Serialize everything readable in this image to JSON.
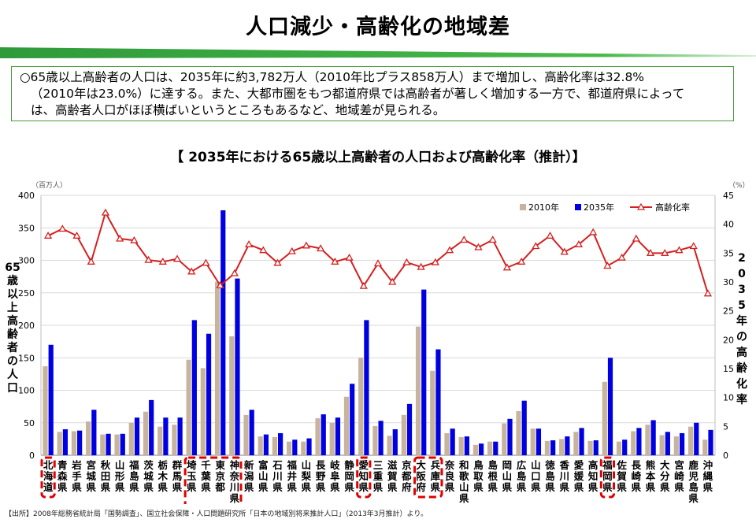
{
  "title": "人口減少・高齢化の地域差",
  "summary": {
    "line1": "○65歳以上高齢者の人口は、2035年に約3,782万人（2010年比プラス858万人）まで増加し、高齢化率は32.8%",
    "line2": "（2010年は23.0%）に達する。また、大都市圏をもつ都道府県では高齢者が著しく増加する一方で、都道府県によって",
    "line3": "は、高齢者人口がほぼ横ばいというところもあるなど、地域差が見られる。"
  },
  "source": "【出所】2008年総務省統計局「国勢調査」、国立社会保障・人口問題研究所「日本の地域別将来推計人口」（2013年3月推計）より。",
  "colors": {
    "accent_green": "#2e9a3a",
    "bar_2010": "#c8b49c",
    "bar_2035": "#0000e0",
    "line_rate": "#d42020",
    "highlight": "#e00000"
  },
  "chart_data": {
    "type": "bar",
    "title": "【 2035年における65歳以上高齢者の人口および高齢化率（推計）】",
    "y_unit_left": "（百万人）",
    "y_unit_right": "（%）",
    "ylabel_left": "65歳以上高齢者の人口",
    "ylabel_right": "2035年の高齢化率",
    "ylim_left": [
      0,
      400
    ],
    "yticks_left": [
      0,
      50,
      100,
      150,
      200,
      250,
      300,
      350,
      400
    ],
    "ylim_right": [
      0,
      45
    ],
    "yticks_right": [
      0,
      5,
      10,
      15,
      20,
      25,
      30,
      35,
      40,
      45
    ],
    "legend_position": "top-right",
    "categories": [
      "北海道",
      "青森県",
      "岩手県",
      "宮城県",
      "秋田県",
      "山形県",
      "福島県",
      "茨城県",
      "栃木県",
      "群馬県",
      "埼玉県",
      "千葉県",
      "東京都",
      "神奈川県",
      "新潟県",
      "富山県",
      "石川県",
      "福井県",
      "山梨県",
      "長野県",
      "岐阜県",
      "静岡県",
      "愛知県",
      "三重県",
      "滋賀県",
      "京都府",
      "大阪府",
      "兵庫県",
      "奈良県",
      "和歌山県",
      "鳥取県",
      "島根県",
      "岡山県",
      "広島県",
      "山口県",
      "徳島県",
      "香川県",
      "愛媛県",
      "高知県",
      "福岡県",
      "佐賀県",
      "長崎県",
      "熊本県",
      "大分県",
      "宮崎県",
      "鹿児島県",
      "沖縄県"
    ],
    "highlighted_groups": [
      [
        "北海道"
      ],
      [
        "埼玉県",
        "千葉県",
        "東京都",
        "神奈川県"
      ],
      [
        "愛知県"
      ],
      [
        "大阪府",
        "兵庫県"
      ],
      [
        "福岡県"
      ]
    ],
    "series": [
      {
        "name": "2010年",
        "type": "bar",
        "axis": "left",
        "values": [
          137,
          36,
          37,
          52,
          32,
          32,
          50,
          67,
          44,
          47,
          147,
          134,
          267,
          183,
          62,
          29,
          28,
          21,
          21,
          57,
          50,
          90,
          150,
          45,
          30,
          62,
          198,
          130,
          34,
          28,
          16,
          21,
          49,
          68,
          41,
          22,
          25,
          36,
          22,
          113,
          21,
          37,
          47,
          31,
          29,
          44,
          24
        ]
      },
      {
        "name": "2035年",
        "type": "bar",
        "axis": "left",
        "values": [
          170,
          40,
          38,
          70,
          33,
          33,
          58,
          85,
          58,
          58,
          208,
          187,
          377,
          272,
          70,
          32,
          34,
          24,
          26,
          63,
          58,
          110,
          208,
          53,
          40,
          79,
          255,
          163,
          41,
          29,
          18,
          21,
          56,
          84,
          41,
          23,
          29,
          42,
          23,
          150,
          24,
          42,
          54,
          36,
          34,
          50,
          39
        ]
      },
      {
        "name": "高齢化率",
        "type": "line",
        "axis": "right",
        "values": [
          38,
          39.2,
          38,
          33.5,
          42,
          37.5,
          37.2,
          33.8,
          33.5,
          34,
          31.8,
          33.3,
          29.4,
          31.5,
          36.5,
          35.5,
          33.3,
          35.3,
          36.3,
          35.8,
          33.5,
          34.2,
          29.3,
          33.2,
          30,
          33.4,
          32.6,
          33.4,
          35.5,
          37.3,
          36,
          37.3,
          32.5,
          33.5,
          36.2,
          38,
          35.2,
          36.5,
          38.6,
          32.8,
          34.2,
          37.5,
          35,
          35,
          35.5,
          36.2,
          28
        ]
      }
    ]
  }
}
